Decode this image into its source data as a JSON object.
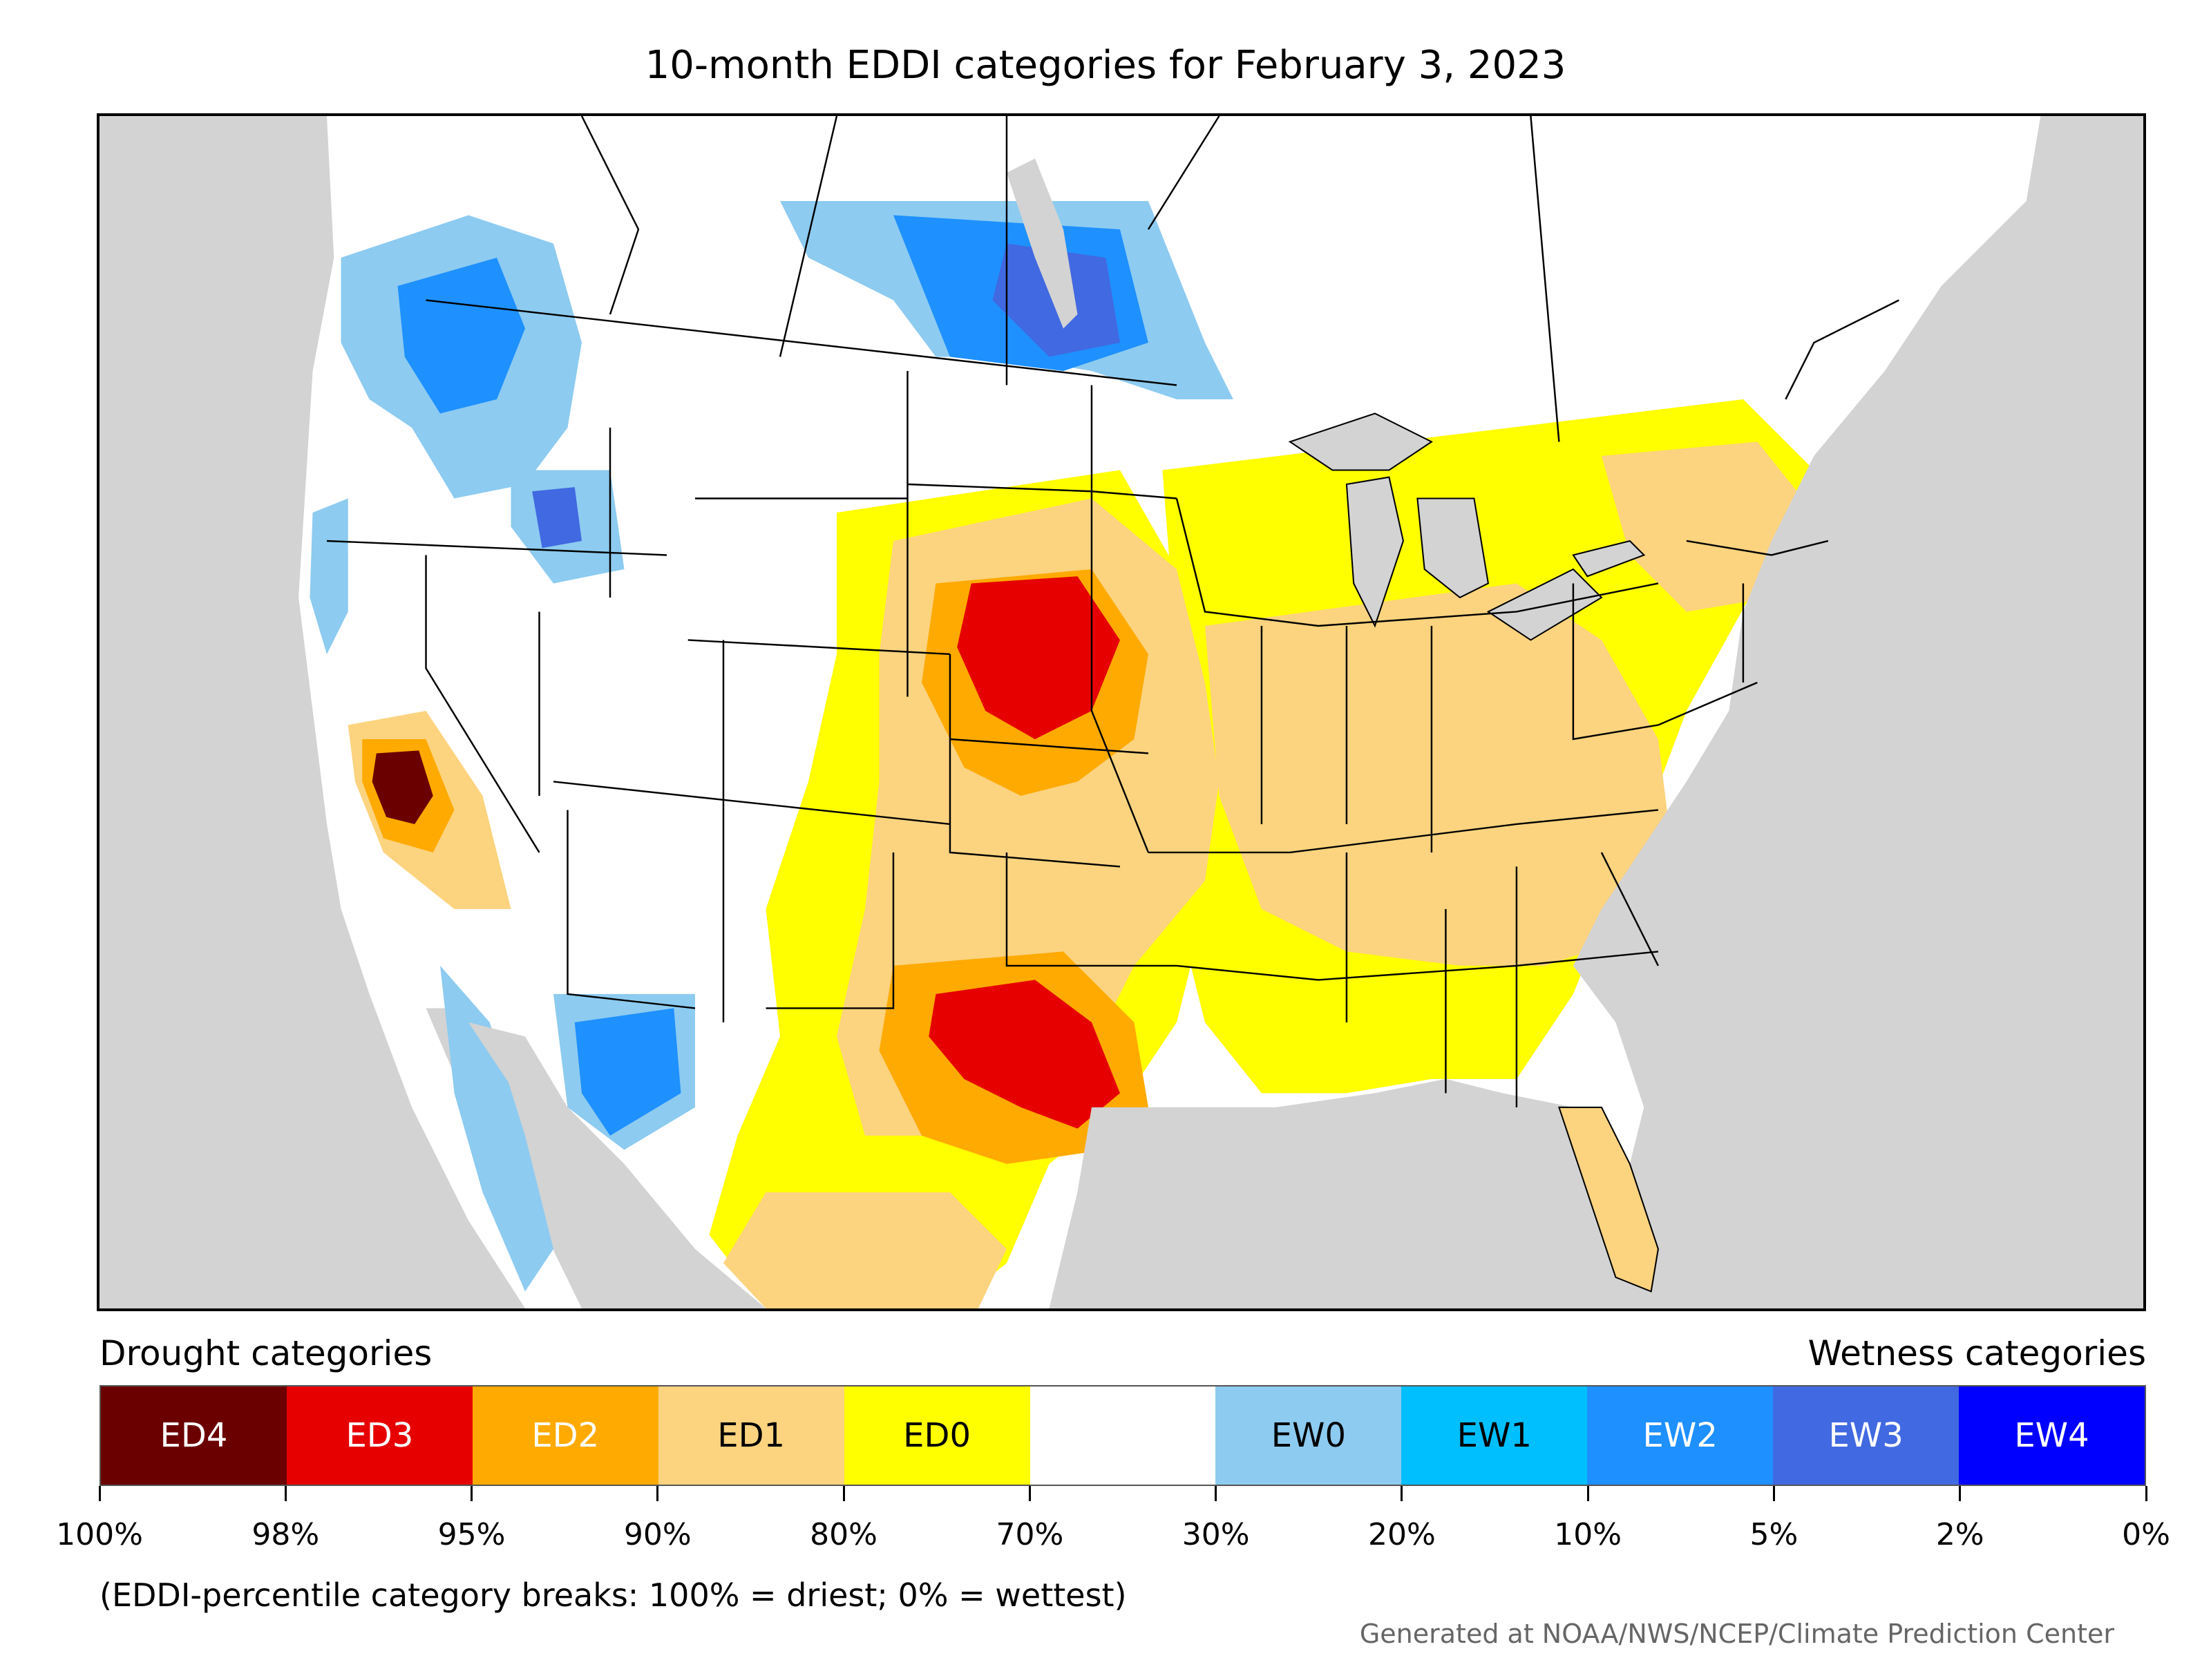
{
  "title": "10-month EDDI categories for February 3, 2023",
  "legend": {
    "left_heading": "Drought categories",
    "right_heading": "Wetness categories",
    "categories": [
      {
        "label": "ED4",
        "color": "#6b0000",
        "text_color": "#ffffff"
      },
      {
        "label": "ED3",
        "color": "#e60000",
        "text_color": "#ffffff"
      },
      {
        "label": "ED2",
        "color": "#ffaa00",
        "text_color": "#ffffff"
      },
      {
        "label": "ED1",
        "color": "#fcd37f",
        "text_color": "#000000"
      },
      {
        "label": "ED0",
        "color": "#ffff00",
        "text_color": "#000000"
      },
      {
        "label": "",
        "color": "#ffffff",
        "text_color": "#000000"
      },
      {
        "label": "EW0",
        "color": "#8dcbf0",
        "text_color": "#000000"
      },
      {
        "label": "EW1",
        "color": "#00bfff",
        "text_color": "#000000"
      },
      {
        "label": "EW2",
        "color": "#1e90ff",
        "text_color": "#ffffff"
      },
      {
        "label": "EW3",
        "color": "#4169e1",
        "text_color": "#ffffff"
      },
      {
        "label": "EW4",
        "color": "#0000ff",
        "text_color": "#ffffff"
      }
    ],
    "tick_labels": [
      "100%",
      "98%",
      "95%",
      "90%",
      "80%",
      "70%",
      "30%",
      "20%",
      "10%",
      "5%",
      "2%",
      "0%"
    ]
  },
  "note": "(EDDI-percentile category breaks: 100% = driest; 0% = wettest)",
  "credit": "Generated at NOAA/NWS/NCEP/Climate Prediction Center",
  "colors": {
    "background_land_outside": "#d3d3d3",
    "land": "#ffffff",
    "borders": "#000000"
  }
}
